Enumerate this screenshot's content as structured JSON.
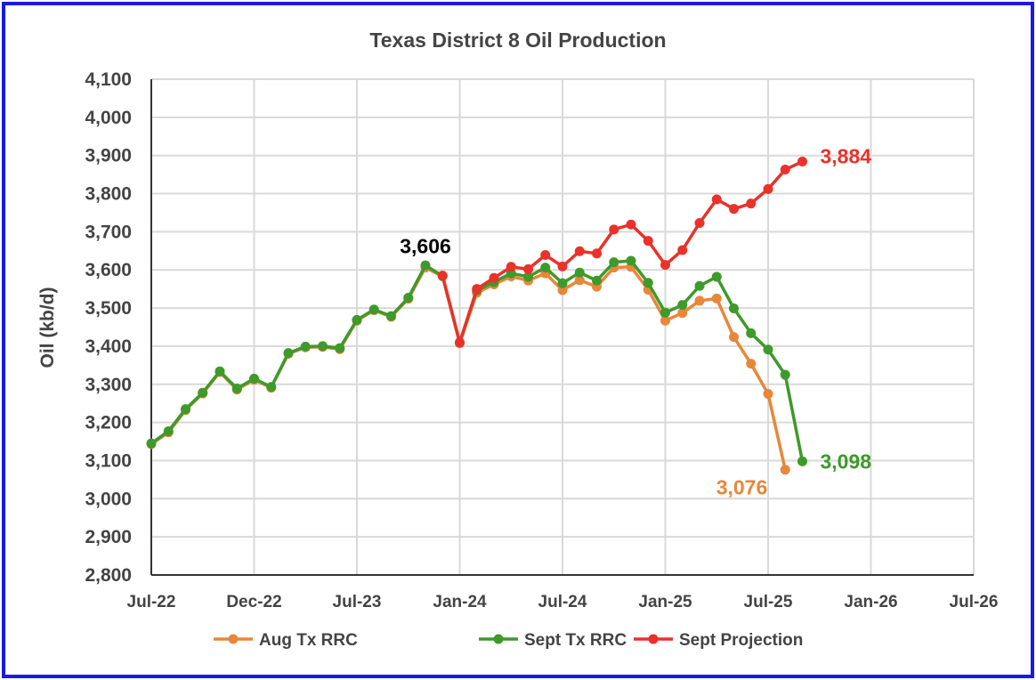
{
  "chart_data": {
    "type": "line",
    "title": "Texas District 8 Oil Production",
    "xlabel": "",
    "ylabel": "Oil (kb/d)",
    "ylim": [
      2800,
      4100
    ],
    "yticks": [
      "2,800",
      "2,900",
      "3,000",
      "3,100",
      "3,200",
      "3,300",
      "3,400",
      "3,500",
      "3,600",
      "3,700",
      "3,800",
      "3,900",
      "4,000",
      "4,100"
    ],
    "xticks": [
      "Jul-22",
      "Dec-22",
      "Jul-23",
      "Jan-24",
      "Jul-24",
      "Jan-25",
      "Jul-25",
      "Jan-26",
      "Jul-26"
    ],
    "x_start": "Jul-22",
    "x_months": 48,
    "grid": true,
    "legend_position": "bottom",
    "colors": {
      "aug": "#e8873a",
      "sept": "#3e9a2b",
      "proj": "#e8322a",
      "frame": "#1a1ae6"
    },
    "series": [
      {
        "name": "Aug Tx RRC",
        "color": "#e8873a",
        "start_month_index": 0,
        "values": [
          3143,
          3174,
          3232,
          3276,
          3332,
          3286,
          3312,
          3291,
          3380,
          3397,
          3398,
          3392,
          3467,
          3494,
          3477,
          3524,
          3606,
          3583,
          3408,
          3540,
          3562,
          3583,
          3572,
          3591,
          3547,
          3573,
          3556,
          3606,
          3608,
          3548,
          3467,
          3487,
          3519,
          3525,
          3424,
          3354,
          3275,
          3076
        ]
      },
      {
        "name": "Sept Tx RRC",
        "color": "#3e9a2b",
        "start_month_index": 0,
        "values": [
          3145,
          3177,
          3235,
          3278,
          3334,
          3289,
          3315,
          3293,
          3382,
          3399,
          3400,
          3395,
          3469,
          3496,
          3479,
          3527,
          3612,
          3584,
          3410,
          3546,
          3568,
          3591,
          3582,
          3606,
          3565,
          3593,
          3572,
          3620,
          3624,
          3566,
          3488,
          3508,
          3558,
          3582,
          3499,
          3434,
          3391,
          3325,
          3098
        ]
      },
      {
        "name": "Sept Projection",
        "color": "#e8322a",
        "start_month_index": 17,
        "values": [
          3585,
          3409,
          3550,
          3579,
          3608,
          3602,
          3639,
          3609,
          3649,
          3643,
          3706,
          3719,
          3676,
          3613,
          3652,
          3723,
          3785,
          3760,
          3774,
          3812,
          3863,
          3884
        ]
      }
    ],
    "annotations": [
      {
        "text": "3,606",
        "color": "#000000",
        "month_index": 16,
        "value": 3606
      },
      {
        "text": "3,884",
        "color": "#e8322a",
        "month_index": 38,
        "value": 3884
      },
      {
        "text": "3,098",
        "color": "#3e9a2b",
        "month_index": 38,
        "value": 3098
      },
      {
        "text": "3,076",
        "color": "#e8873a",
        "month_index": 37,
        "value": 3076
      }
    ]
  }
}
